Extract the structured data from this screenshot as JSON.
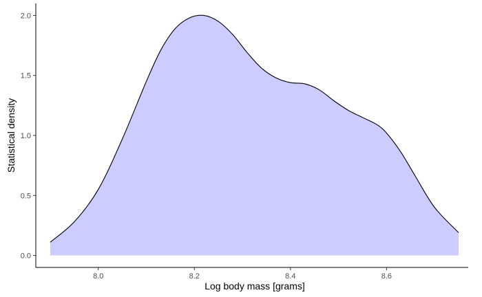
{
  "chart_data": {
    "type": "area",
    "title": "",
    "xlabel": "Log body mass [grams]",
    "ylabel": "Statistical density",
    "xlim": [
      7.87,
      8.77
    ],
    "ylim": [
      -0.1,
      2.1
    ],
    "x_ticks": [
      8.0,
      8.2,
      8.4,
      8.6
    ],
    "x_tick_labels": [
      "8.0",
      "8.2",
      "8.4",
      "8.6"
    ],
    "y_ticks": [
      0.0,
      0.5,
      1.0,
      1.5,
      2.0
    ],
    "y_tick_labels": [
      "0.0",
      "0.5",
      "1.0",
      "1.5",
      "2.0"
    ],
    "grid": false,
    "fill_color": "#ccccff",
    "line_color": "#000000",
    "series": [
      {
        "x": [
          7.9,
          7.95,
          8.0,
          8.05,
          8.1,
          8.13,
          8.16,
          8.19,
          8.22,
          8.25,
          8.28,
          8.31,
          8.34,
          8.37,
          8.4,
          8.43,
          8.46,
          8.49,
          8.52,
          8.55,
          8.58,
          8.6,
          8.63,
          8.66,
          8.7,
          8.75
        ],
        "y": [
          0.11,
          0.28,
          0.55,
          0.97,
          1.45,
          1.71,
          1.89,
          1.98,
          2.0,
          1.95,
          1.84,
          1.69,
          1.56,
          1.48,
          1.44,
          1.43,
          1.38,
          1.29,
          1.21,
          1.15,
          1.09,
          1.02,
          0.86,
          0.66,
          0.4,
          0.19
        ]
      }
    ]
  }
}
